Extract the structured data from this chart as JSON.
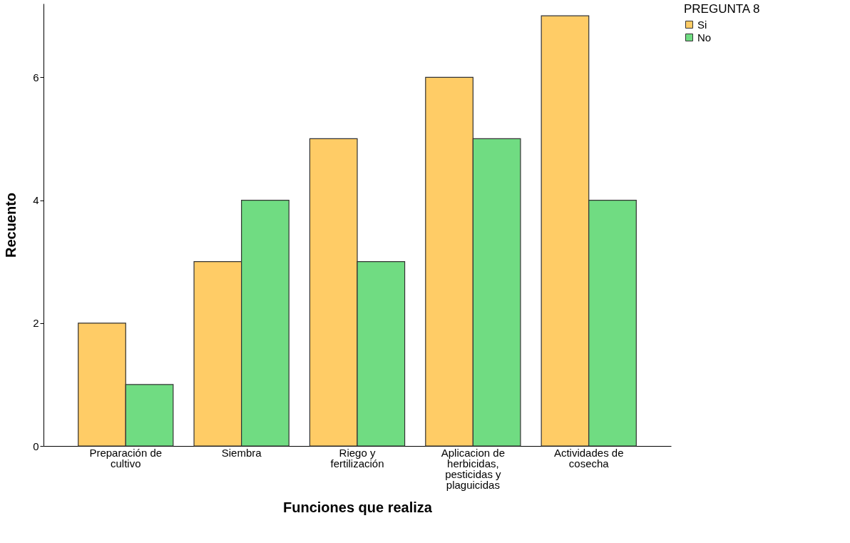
{
  "chart_data": {
    "type": "bar",
    "xlabel": "Funciones que realiza",
    "ylabel": "Recuento",
    "legend_title": "PREGUNTA 8",
    "categories": [
      "Preparación de cultivo",
      "Siembra",
      "Riego y fertilización",
      "Aplicacion de herbicidas, pesticidas y plaguicidas",
      "Actividades de cosecha"
    ],
    "series": [
      {
        "name": "Si",
        "color": "#ffcc66",
        "values": [
          2,
          3,
          5,
          6,
          7
        ]
      },
      {
        "name": "No",
        "color": "#70dc82",
        "values": [
          1,
          4,
          3,
          5,
          4
        ]
      }
    ],
    "ylim": [
      0,
      7.2
    ],
    "yticks": [
      0,
      2,
      4,
      6
    ],
    "grid": false,
    "legend": "top right"
  }
}
